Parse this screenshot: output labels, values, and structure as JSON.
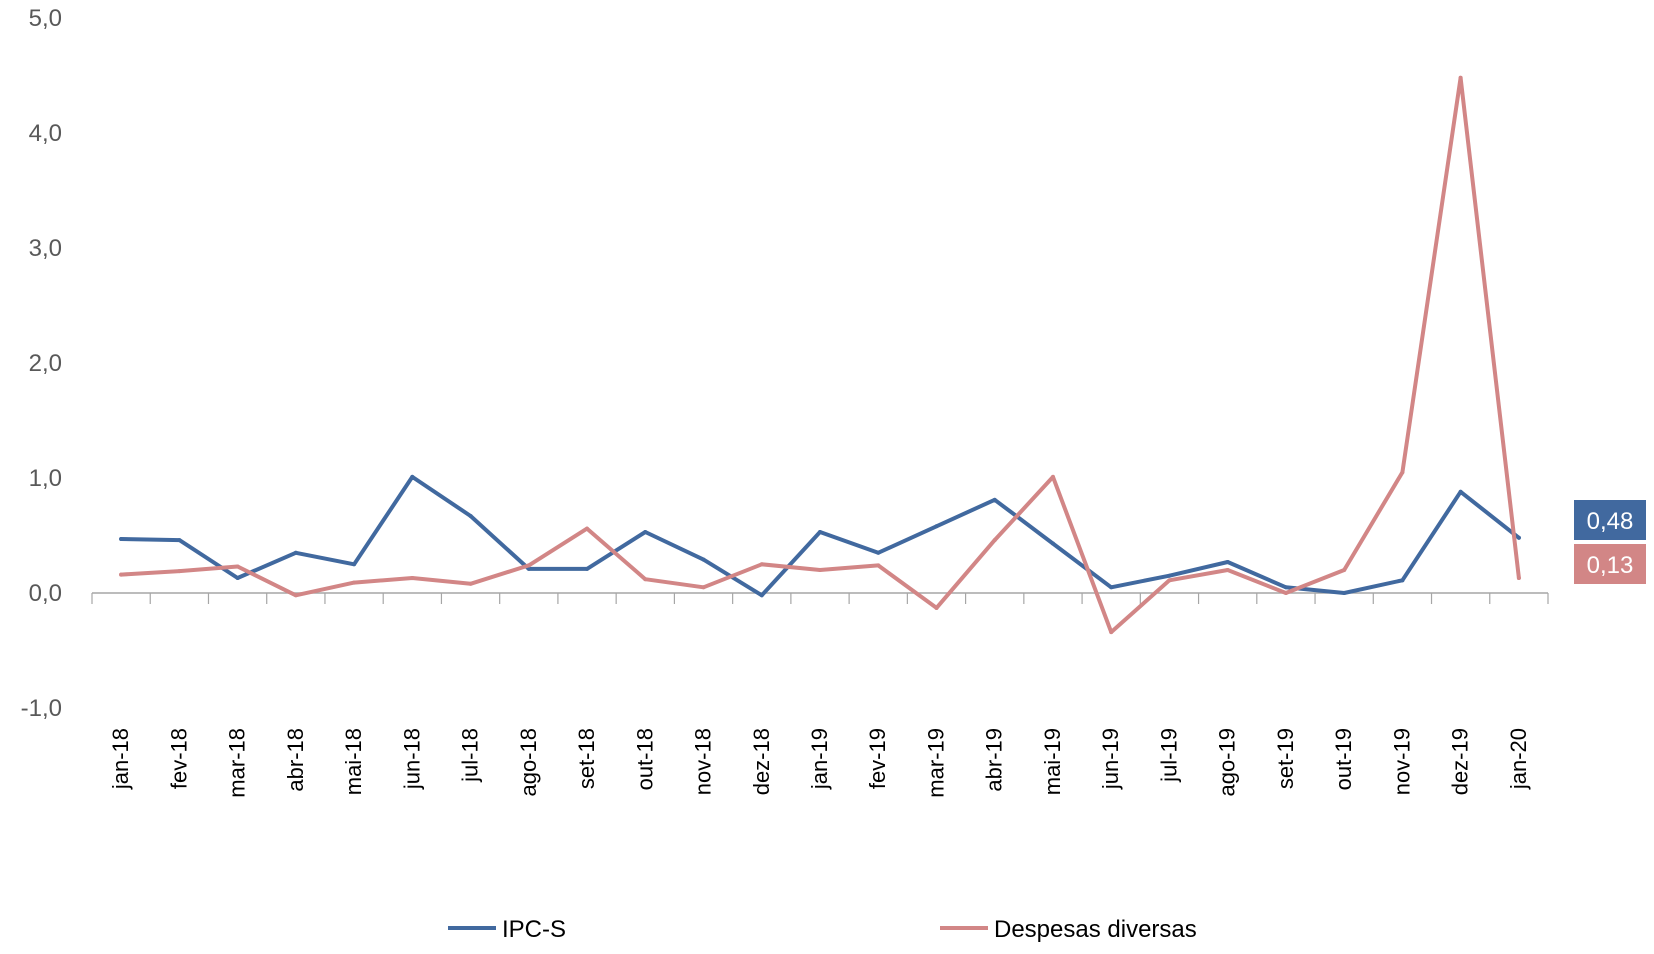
{
  "chart_data": {
    "type": "line",
    "title": "",
    "xlabel": "",
    "ylabel": "",
    "ylim": [
      -1.0,
      5.0
    ],
    "y_ticks": [
      "-1,0",
      "0,0",
      "1,0",
      "2,0",
      "3,0",
      "4,0",
      "5,0"
    ],
    "y_tick_values": [
      -1.0,
      0.0,
      1.0,
      2.0,
      3.0,
      4.0,
      5.0
    ],
    "grid": false,
    "legend_position": "bottom",
    "categories": [
      "jan-18",
      "fev-18",
      "mar-18",
      "abr-18",
      "mai-18",
      "jun-18",
      "jul-18",
      "ago-18",
      "set-18",
      "out-18",
      "nov-18",
      "dez-18",
      "jan-19",
      "fev-19",
      "mar-19",
      "abr-19",
      "mai-19",
      "jun-19",
      "jul-19",
      "ago-19",
      "set-19",
      "out-19",
      "nov-19",
      "dez-19",
      "jan-20"
    ],
    "series": [
      {
        "name": "IPC-S",
        "color": "#41699f",
        "values": [
          0.47,
          0.46,
          0.13,
          0.35,
          0.25,
          1.01,
          0.67,
          0.21,
          0.21,
          0.53,
          0.29,
          -0.02,
          0.53,
          0.35,
          0.58,
          0.81,
          0.43,
          0.05,
          0.15,
          0.27,
          0.05,
          0.0,
          0.11,
          0.88,
          0.48
        ],
        "end_label": "0,48"
      },
      {
        "name": "Despesas diversas",
        "color": "#d28686",
        "values": [
          0.16,
          0.19,
          0.23,
          -0.02,
          0.09,
          0.13,
          0.08,
          0.24,
          0.56,
          0.12,
          0.05,
          0.25,
          0.2,
          0.24,
          -0.13,
          0.46,
          1.01,
          -0.34,
          0.11,
          0.2,
          0.0,
          0.2,
          1.05,
          4.48,
          0.13
        ],
        "end_label": "0,13"
      }
    ]
  }
}
